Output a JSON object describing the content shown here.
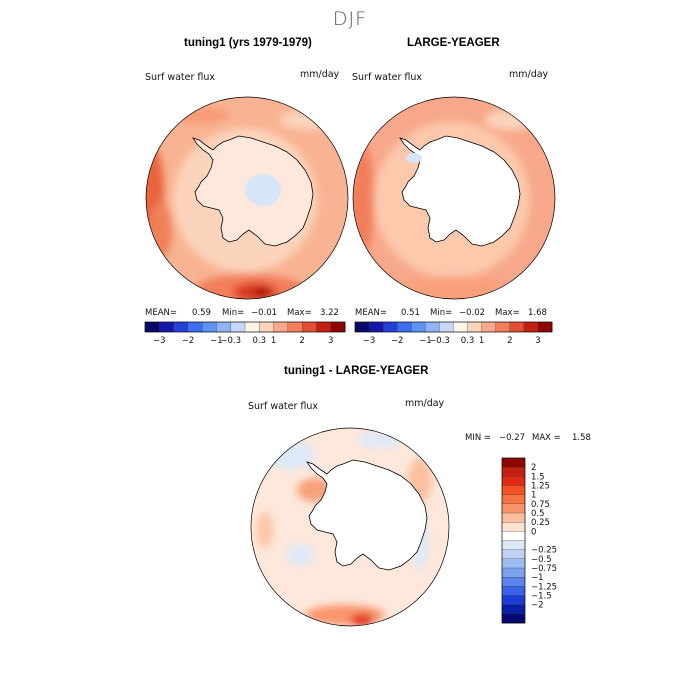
{
  "figure": {
    "season": "DJF",
    "variable": "Surf water flux",
    "units": "mm/day"
  },
  "panels": [
    {
      "title": "tuning1 (yrs 1979-1979)",
      "stats": {
        "mean_label": "MEAN=",
        "mean": "0.59",
        "min_label": "Min=",
        "min": "−0.01",
        "max_label": "Max=",
        "max": "3.22"
      }
    },
    {
      "title": "LARGE-YEAGER",
      "stats": {
        "mean_label": "MEAN=",
        "mean": "0.51",
        "min_label": "Min=",
        "min": "−0.02",
        "max_label": "Max=",
        "max": "1.68"
      }
    },
    {
      "title": "tuning1 - LARGE-YEAGER",
      "stats": {
        "min_label": "MIN =",
        "min": "−0.27",
        "max_label": "MAX =",
        "max": "1.58"
      }
    }
  ],
  "colorbar_top": {
    "colors": [
      "#08086a",
      "#1616a8",
      "#2540d9",
      "#3e6ef0",
      "#5f92f5",
      "#8fb5f5",
      "#c4d9f7",
      "#fff4ea",
      "#fcd4bb",
      "#f9a988",
      "#f27e5c",
      "#e24f33",
      "#c42012",
      "#8f0703"
    ],
    "labels": [
      "−3",
      "−2",
      "−1",
      "−0.3",
      "0.3",
      "1",
      "2",
      "3"
    ]
  },
  "colorbar_diff": {
    "colors": [
      "#8f0703",
      "#c42012",
      "#e02a14",
      "#f25122",
      "#f67442",
      "#f8946a",
      "#fbbf9e",
      "#fde2cf",
      "#ffffff",
      "#dce8f8",
      "#bed3f4",
      "#9dbcf0",
      "#7da0ec",
      "#5b83ea",
      "#3a62e6",
      "#1c3ed2",
      "#0a1fa6",
      "#05086e"
    ],
    "labels": [
      "2",
      "1.5",
      "1.25",
      "1",
      "0.75",
      "0.5",
      "0.25",
      "0",
      "−0.25",
      "−0.5",
      "−0.75",
      "−1",
      "−1.25",
      "−1.5",
      "−2"
    ]
  },
  "chart_data": [
    {
      "type": "heatmap",
      "projection": "south-polar-stereographic",
      "title": "tuning1 (yrs 1979-1979)",
      "variable": "Surf water flux",
      "units": "mm/day",
      "mean": 0.59,
      "min": -0.01,
      "max": 3.22,
      "contour_levels": [
        -3,
        -2,
        -1,
        -0.3,
        0.3,
        1,
        2,
        3
      ],
      "description_values": {
        "southern_ocean_typical": 1.0,
        "antarctic_interior_typical": 0.3,
        "peak_near_south_america": 3.2
      }
    },
    {
      "type": "heatmap",
      "projection": "south-polar-stereographic",
      "title": "LARGE-YEAGER",
      "variable": "Surf water flux",
      "units": "mm/day",
      "mean": 0.51,
      "min": -0.02,
      "max": 1.68,
      "contour_levels": [
        -3,
        -2,
        -1,
        -0.3,
        0.3,
        1,
        2,
        3
      ],
      "description_values": {
        "southern_ocean_typical": 1.0,
        "antarctic_interior": null
      }
    },
    {
      "type": "heatmap",
      "projection": "south-polar-stereographic",
      "title": "tuning1 - LARGE-YEAGER",
      "variable": "Surf water flux",
      "units": "mm/day",
      "min": -0.27,
      "max": 1.58,
      "contour_levels": [
        -2,
        -1.5,
        -1.25,
        -1,
        -0.75,
        -0.5,
        -0.25,
        0,
        0.25,
        0.5,
        0.75,
        1,
        1.25,
        1.5,
        2
      ]
    }
  ]
}
